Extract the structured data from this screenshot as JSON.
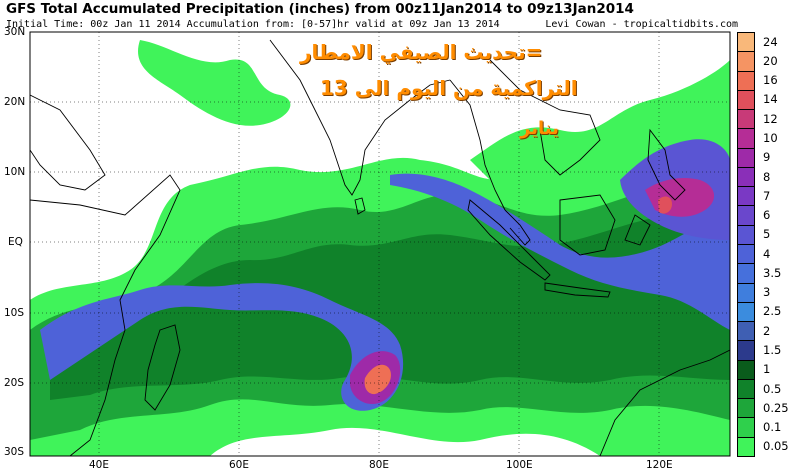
{
  "title": "GFS Total Accumulated Precipitation (inches) from 00z11Jan2014 to 09z13Jan2014",
  "subtitle": "Initial Time: 00z Jan 11 2014 Accumulation from: [0-57]hr valid at 09z Jan 13 2014",
  "credit": "Levi Cowan - tropicaltidbits.com",
  "lat_labels": [
    "30N",
    "20N",
    "10N",
    "EQ",
    "10S",
    "20S",
    "30S"
  ],
  "lon_labels": [
    "40E",
    "60E",
    "80E",
    "100E",
    "120E"
  ],
  "annotations": {
    "line1": "=تحديث الصيفي الامطار",
    "line2": "التراكمية من اليوم الى 13",
    "line3": "يناير"
  },
  "legend": {
    "labels": [
      "24",
      "20",
      "16",
      "14",
      "12",
      "10",
      "9",
      "8",
      "7",
      "6",
      "5",
      "4",
      "3.5",
      "3",
      "2.5",
      "2",
      "1.5",
      "1",
      "0.5",
      "0.25",
      "0.1",
      "0.05"
    ],
    "colors": [
      "#f9b87a",
      "#f59463",
      "#ee6f55",
      "#e0505c",
      "#c83a78",
      "#b52d96",
      "#9e2aa8",
      "#8a2fb8",
      "#7a39c4",
      "#6a47cc",
      "#5a55d3",
      "#4e62d8",
      "#4670dc",
      "#3f7edd",
      "#3b8cde",
      "#3f5fb3",
      "#2c3a8c",
      "#0a5c1c",
      "#10822a",
      "#1ea63a",
      "#2fd04c",
      "#40f35a"
    ]
  },
  "colors": {
    "land": "#ffffff",
    "coast": "#000000",
    "ocean_no_rain": "#ffffff"
  }
}
